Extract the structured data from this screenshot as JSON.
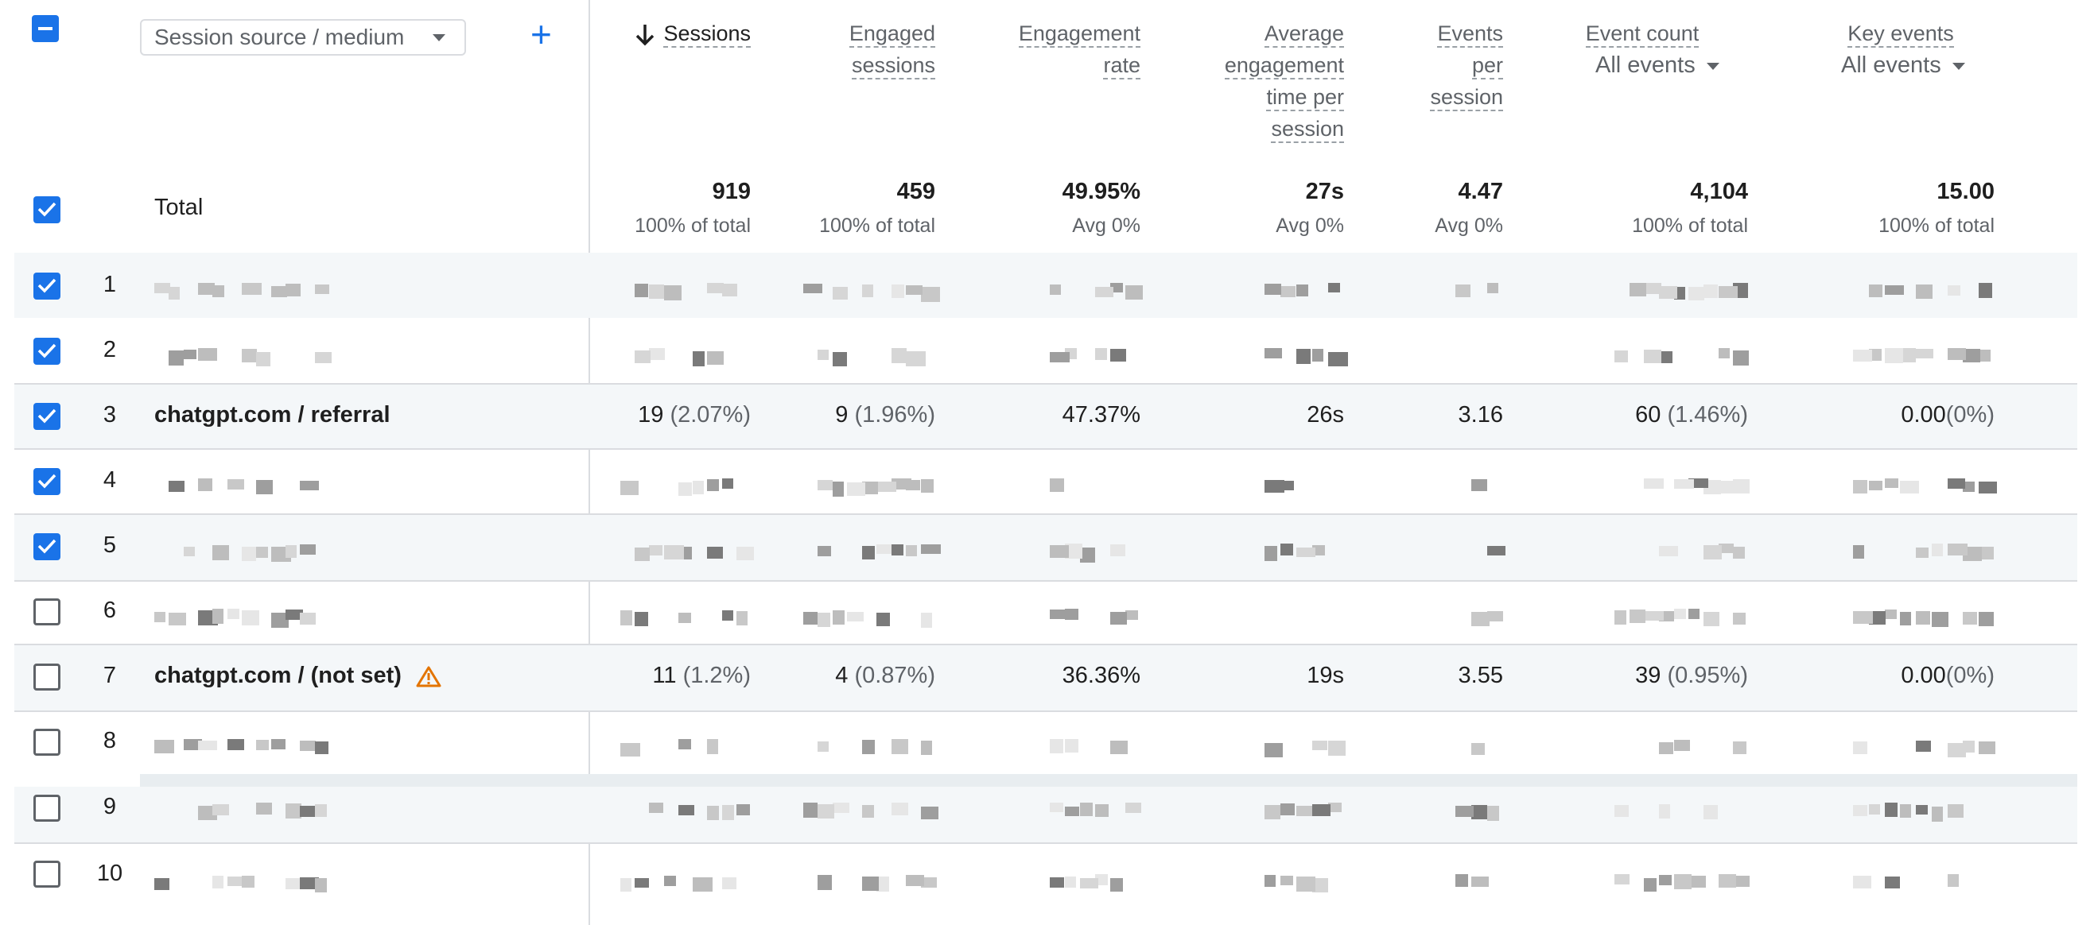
{
  "colors": {
    "accent": "#1a73e8",
    "warning": "#e37400",
    "row_shade": "#f4f7f9"
  },
  "toolbar": {
    "dimension_select": "Session source / medium",
    "add_dimension_icon": "plus-icon",
    "select_all_icon": "indeterminate-checkbox-icon"
  },
  "columns": {
    "sessions": {
      "label": "Sessions",
      "sort_icon": "arrow-down-icon"
    },
    "engaged_sessions": {
      "line1": "Engaged",
      "line2": "sessions"
    },
    "engagement_rate": {
      "line1": "Engagement",
      "line2": "rate"
    },
    "avg_engagement": {
      "line1": "Average",
      "line2": "engagement",
      "line3": "time per",
      "line4": "session"
    },
    "events_per_session": {
      "line1": "Events",
      "line2": "per",
      "line3": "session"
    },
    "event_count": {
      "label": "Event count",
      "filter": "All events"
    },
    "key_events": {
      "label": "Key events",
      "filter": "All events"
    }
  },
  "totals": {
    "label": "Total",
    "sessions": "919",
    "sessions_sub": "100% of total",
    "engaged_sessions": "459",
    "engaged_sessions_sub": "100% of total",
    "engagement_rate": "49.95%",
    "engagement_rate_sub": "Avg 0%",
    "avg_engagement": "27s",
    "avg_engagement_sub": "Avg 0%",
    "events_per_session": "4.47",
    "events_per_session_sub": "Avg 0%",
    "event_count": "4,104",
    "event_count_sub": "100% of total",
    "key_events": "15.00",
    "key_events_sub": "100% of total"
  },
  "rows": [
    {
      "num": "1",
      "checked": true
    },
    {
      "num": "2",
      "checked": true
    },
    {
      "num": "3",
      "checked": true,
      "dimension": "chatgpt.com / referral",
      "sessions": "19",
      "sessions_pct": "(2.07%)",
      "engaged_sessions": "9",
      "engaged_sessions_pct": "(1.96%)",
      "engagement_rate": "47.37%",
      "avg_engagement": "26s",
      "events_per_session": "3.16",
      "event_count": "60",
      "event_count_pct": "(1.46%)",
      "key_events": "0.00",
      "key_events_pct": "(0%)"
    },
    {
      "num": "4",
      "checked": true
    },
    {
      "num": "5",
      "checked": true
    },
    {
      "num": "6",
      "checked": false
    },
    {
      "num": "7",
      "checked": false,
      "dimension": "chatgpt.com / (not set)",
      "warning_icon": "warning-icon",
      "sessions": "11",
      "sessions_pct": "(1.2%)",
      "engaged_sessions": "4",
      "engaged_sessions_pct": "(0.87%)",
      "engagement_rate": "36.36%",
      "avg_engagement": "19s",
      "events_per_session": "3.55",
      "event_count": "39",
      "event_count_pct": "(0.95%)",
      "key_events": "0.00",
      "key_events_pct": "(0%)"
    },
    {
      "num": "8",
      "checked": false
    },
    {
      "num": "9",
      "checked": false
    },
    {
      "num": "10",
      "checked": false
    }
  ]
}
